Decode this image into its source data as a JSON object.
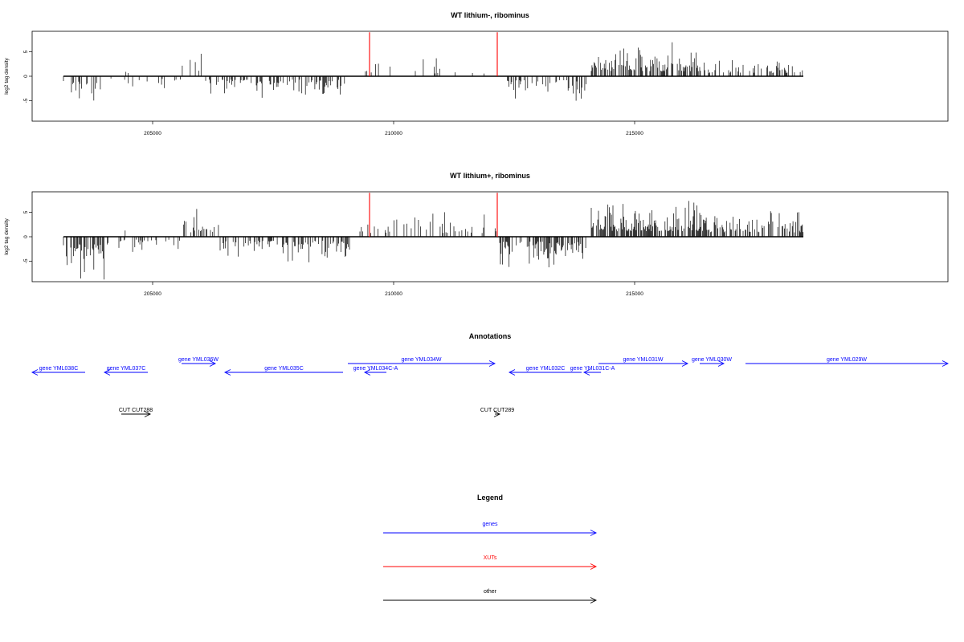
{
  "chart_data": [
    {
      "type": "bar",
      "title": "WT lithium-, ribominus",
      "ylabel": "log2 tag density",
      "xlim": [
        202500,
        221500
      ],
      "ylim": [
        -9.2,
        9.2
      ],
      "x_ticks": [
        205000,
        210000,
        215000
      ],
      "y_ticks": [
        -5,
        0,
        5
      ],
      "segments": [
        {
          "from": 203150,
          "to": 204000,
          "sign": -1,
          "amp": 3.5,
          "density": 0.3
        },
        {
          "from": 204000,
          "to": 205600,
          "sign": -1,
          "amp": 1.5,
          "density": 0.1
        },
        {
          "from": 204400,
          "to": 204500,
          "sign": 1,
          "amp": 2.3,
          "density": 0.2
        },
        {
          "from": 205600,
          "to": 206100,
          "sign": 1,
          "amp": 3.8,
          "density": 0.25
        },
        {
          "from": 206100,
          "to": 209100,
          "sign": -1,
          "amp": 2.8,
          "density": 0.3
        },
        {
          "from": 209400,
          "to": 212100,
          "sign": 1,
          "amp": 2.2,
          "density": 0.1
        },
        {
          "from": 212300,
          "to": 214000,
          "sign": -1,
          "amp": 3.2,
          "density": 0.35
        },
        {
          "from": 214100,
          "to": 216500,
          "sign": 1,
          "amp": 4.0,
          "density": 0.55
        },
        {
          "from": 216500,
          "to": 218500,
          "sign": 1,
          "amp": 2.5,
          "density": 0.25
        }
      ],
      "xut_lines": [
        209500,
        212150
      ],
      "xut_height": 9
    },
    {
      "type": "bar",
      "title": "WT lithium+, ribominus",
      "ylabel": "log2 tag density",
      "xlim": [
        202500,
        221500
      ],
      "ylim": [
        -9.2,
        9.2
      ],
      "x_ticks": [
        205000,
        210000,
        215000
      ],
      "y_ticks": [
        -5,
        0,
        5
      ],
      "segments": [
        {
          "from": 203150,
          "to": 204000,
          "sign": -1,
          "amp": 5.5,
          "density": 0.55
        },
        {
          "from": 204000,
          "to": 205600,
          "sign": -1,
          "amp": 1.8,
          "density": 0.15
        },
        {
          "from": 204400,
          "to": 204550,
          "sign": 1,
          "amp": 2.4,
          "density": 0.2
        },
        {
          "from": 205600,
          "to": 206400,
          "sign": 1,
          "amp": 3.5,
          "density": 0.35
        },
        {
          "from": 206400,
          "to": 209100,
          "sign": -1,
          "amp": 3.2,
          "density": 0.35
        },
        {
          "from": 209300,
          "to": 212200,
          "sign": 1,
          "amp": 3.0,
          "density": 0.2
        },
        {
          "from": 212200,
          "to": 214000,
          "sign": -1,
          "amp": 4.0,
          "density": 0.55
        },
        {
          "from": 214100,
          "to": 216500,
          "sign": 1,
          "amp": 4.5,
          "density": 0.7
        },
        {
          "from": 216500,
          "to": 218500,
          "sign": 1,
          "amp": 3.5,
          "density": 0.45
        }
      ],
      "xut_lines": [
        209500,
        212150
      ],
      "xut_height": 9
    }
  ],
  "annotations": {
    "title": "Annotations",
    "items": [
      {
        "label": "gene YML038C",
        "from": 203600,
        "to": 202500,
        "row": 1,
        "color": "#0000ff"
      },
      {
        "label": "gene YML037C",
        "from": 204900,
        "to": 204000,
        "row": 1,
        "color": "#0000ff"
      },
      {
        "label": "gene YML036W",
        "from": 205600,
        "to": 206300,
        "row": 0,
        "color": "#0000ff"
      },
      {
        "label": "gene YML035C",
        "from": 208950,
        "to": 206500,
        "row": 1,
        "color": "#0000ff"
      },
      {
        "label": "gene YML034C-A",
        "from": 209850,
        "to": 209400,
        "row": 1,
        "color": "#0000ff"
      },
      {
        "label": "gene YML034W",
        "from": 209050,
        "to": 212100,
        "row": 0,
        "color": "#0000ff"
      },
      {
        "label": "gene YML032C",
        "from": 213900,
        "to": 212400,
        "row": 1,
        "color": "#0000ff"
      },
      {
        "label": "gene YML031C-A",
        "from": 214300,
        "to": 213950,
        "row": 1,
        "color": "#0000ff"
      },
      {
        "label": "gene YML031W",
        "from": 214250,
        "to": 216100,
        "row": 0,
        "color": "#0000ff"
      },
      {
        "label": "gene YML030W",
        "from": 216350,
        "to": 216850,
        "row": 0,
        "color": "#0000ff"
      },
      {
        "label": "gene YML029W",
        "from": 217300,
        "to": 221500,
        "row": 0,
        "color": "#0000ff"
      },
      {
        "label": "CUT CUT288",
        "from": 204350,
        "to": 204950,
        "row": 2,
        "color": "#000000"
      },
      {
        "label": "CUT CUT289",
        "from": 212100,
        "to": 212200,
        "row": 2,
        "color": "#000000"
      }
    ]
  },
  "legend": {
    "title": "Legend",
    "items": [
      {
        "label": "genes",
        "color": "#0000ff"
      },
      {
        "label": "XUTs",
        "color": "#ff0000"
      },
      {
        "label": "other",
        "color": "#000000"
      }
    ]
  }
}
